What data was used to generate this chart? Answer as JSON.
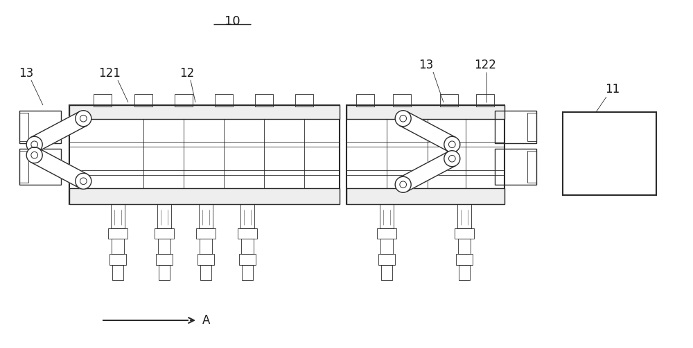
{
  "background_color": "#ffffff",
  "lc": "#2a2a2a",
  "lw": 1.0,
  "lw_thick": 1.5,
  "lw_thin": 0.6,
  "figsize": [
    10.0,
    5.03
  ],
  "dpi": 100,
  "label_10": "10",
  "label_11": "11",
  "label_12": "12",
  "label_121": "121",
  "label_122": "122",
  "label_13": "13",
  "label_A": "A"
}
